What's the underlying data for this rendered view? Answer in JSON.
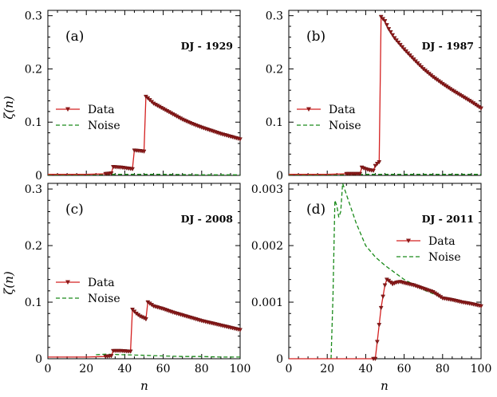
{
  "figure": {
    "ylabel": "ζ(n)",
    "xlabel": "n"
  },
  "chart_data": [
    {
      "type": "line",
      "panel": "(a)",
      "title": "DJ - 1929",
      "xlim": [
        0,
        100
      ],
      "ylim": [
        0,
        0.31
      ],
      "xticks": [
        0,
        20,
        40,
        60,
        80,
        100
      ],
      "yticks": [
        0,
        0.1,
        0.2,
        0.3
      ],
      "ytick_labels": [
        "0",
        "0.1",
        "0.2",
        "0.3"
      ],
      "show_xtick_labels": false,
      "legend": {
        "position": "middle-left",
        "data_label": "Data",
        "noise_label": "Noise"
      },
      "series": [
        {
          "name": "Data",
          "points": [
            [
              0,
              0.002
            ],
            [
              10,
              0.002
            ],
            [
              20,
              0.002
            ],
            [
              30,
              0.003
            ],
            [
              33,
              0.004
            ],
            [
              34,
              0.016
            ],
            [
              38,
              0.015
            ],
            [
              42,
              0.013
            ],
            [
              44,
              0.012
            ],
            [
              45,
              0.047
            ],
            [
              48,
              0.046
            ],
            [
              50,
              0.045
            ],
            [
              51,
              0.148
            ],
            [
              52,
              0.145
            ],
            [
              55,
              0.135
            ],
            [
              60,
              0.125
            ],
            [
              65,
              0.115
            ],
            [
              70,
              0.105
            ],
            [
              75,
              0.097
            ],
            [
              80,
              0.09
            ],
            [
              85,
              0.084
            ],
            [
              90,
              0.078
            ],
            [
              95,
              0.073
            ],
            [
              100,
              0.068
            ]
          ]
        },
        {
          "name": "Noise",
          "points": [
            [
              0,
              0.001
            ],
            [
              20,
              0.001
            ],
            [
              33,
              0.002
            ],
            [
              40,
              0.002
            ],
            [
              50,
              0.002
            ],
            [
              60,
              0.002
            ],
            [
              80,
              0.001
            ],
            [
              100,
              0.001
            ]
          ]
        }
      ]
    },
    {
      "type": "line",
      "panel": "(b)",
      "title": "DJ - 1987",
      "xlim": [
        0,
        100
      ],
      "ylim": [
        0,
        0.31
      ],
      "xticks": [
        0,
        20,
        40,
        60,
        80,
        100
      ],
      "yticks": [
        0,
        0.1,
        0.2,
        0.3
      ],
      "ytick_labels": [
        "0",
        "0.1",
        "0.2",
        "0.3"
      ],
      "show_xtick_labels": false,
      "legend": {
        "position": "middle-left",
        "data_label": "Data",
        "noise_label": "Noise"
      },
      "series": [
        {
          "name": "Data",
          "points": [
            [
              0,
              0.002
            ],
            [
              10,
              0.002
            ],
            [
              20,
              0.002
            ],
            [
              30,
              0.003
            ],
            [
              37,
              0.003
            ],
            [
              38,
              0.015
            ],
            [
              40,
              0.012
            ],
            [
              42,
              0.01
            ],
            [
              44,
              0.009
            ],
            [
              45,
              0.018
            ],
            [
              46,
              0.022
            ],
            [
              47,
              0.025
            ],
            [
              48,
              0.298
            ],
            [
              50,
              0.29
            ],
            [
              52,
              0.275
            ],
            [
              55,
              0.258
            ],
            [
              60,
              0.237
            ],
            [
              65,
              0.218
            ],
            [
              70,
              0.2
            ],
            [
              75,
              0.185
            ],
            [
              80,
              0.172
            ],
            [
              85,
              0.16
            ],
            [
              90,
              0.149
            ],
            [
              95,
              0.138
            ],
            [
              100,
              0.126
            ]
          ]
        },
        {
          "name": "Noise",
          "points": [
            [
              0,
              0.001
            ],
            [
              20,
              0.001
            ],
            [
              40,
              0.002
            ],
            [
              60,
              0.002
            ],
            [
              80,
              0.002
            ],
            [
              100,
              0.002
            ]
          ]
        }
      ]
    },
    {
      "type": "line",
      "panel": "(c)",
      "title": "DJ - 2008",
      "xlim": [
        0,
        100
      ],
      "ylim": [
        0,
        0.31
      ],
      "xticks": [
        0,
        20,
        40,
        60,
        80,
        100
      ],
      "xtick_labels": [
        "0",
        "20",
        "40",
        "60",
        "80",
        "100"
      ],
      "yticks": [
        0,
        0.1,
        0.2,
        0.3
      ],
      "ytick_labels": [
        "0",
        "0.1",
        "0.2",
        "0.3"
      ],
      "show_xtick_labels": true,
      "legend": {
        "position": "middle-left",
        "data_label": "Data",
        "noise_label": "Noise"
      },
      "series": [
        {
          "name": "Data",
          "points": [
            [
              0,
              0.003
            ],
            [
              10,
              0.003
            ],
            [
              20,
              0.003
            ],
            [
              30,
              0.004
            ],
            [
              33,
              0.005
            ],
            [
              34,
              0.014
            ],
            [
              38,
              0.014
            ],
            [
              42,
              0.013
            ],
            [
              43,
              0.013
            ],
            [
              44,
              0.087
            ],
            [
              46,
              0.08
            ],
            [
              48,
              0.075
            ],
            [
              50,
              0.072
            ],
            [
              51,
              0.07
            ],
            [
              52,
              0.1
            ],
            [
              55,
              0.093
            ],
            [
              60,
              0.088
            ],
            [
              65,
              0.082
            ],
            [
              70,
              0.077
            ],
            [
              75,
              0.072
            ],
            [
              80,
              0.067
            ],
            [
              85,
              0.063
            ],
            [
              90,
              0.059
            ],
            [
              95,
              0.055
            ],
            [
              100,
              0.051
            ]
          ]
        },
        {
          "name": "Noise",
          "points": [
            [
              25,
              0.007
            ],
            [
              30,
              0.008
            ],
            [
              40,
              0.007
            ],
            [
              50,
              0.006
            ],
            [
              60,
              0.005
            ],
            [
              70,
              0.004
            ],
            [
              80,
              0.004
            ],
            [
              90,
              0.003
            ],
            [
              100,
              0.003
            ]
          ]
        }
      ]
    },
    {
      "type": "line",
      "panel": "(d)",
      "title": "DJ - 2011",
      "xlim": [
        0,
        100
      ],
      "ylim": [
        0,
        0.0031
      ],
      "xticks": [
        0,
        20,
        40,
        60,
        80,
        100
      ],
      "xtick_labels": [
        "0",
        "20",
        "40",
        "60",
        "80",
        "100"
      ],
      "yticks": [
        0,
        0.001,
        0.002,
        0.003
      ],
      "ytick_labels": [
        "0",
        "0.001",
        "0.002",
        "0.003"
      ],
      "show_xtick_labels": true,
      "legend": {
        "position": "upper-right",
        "data_label": "Data",
        "noise_label": "Noise"
      },
      "series": [
        {
          "name": "Data",
          "points": [
            [
              0,
              0
            ],
            [
              20,
              0
            ],
            [
              40,
              0
            ],
            [
              45,
              0
            ],
            [
              46,
              0.0003
            ],
            [
              47,
              0.0006
            ],
            [
              48,
              0.0009
            ],
            [
              49,
              0.0011
            ],
            [
              50,
              0.0013
            ],
            [
              51,
              0.0014
            ],
            [
              52,
              0.00138
            ],
            [
              54,
              0.00132
            ],
            [
              56,
              0.00135
            ],
            [
              58,
              0.00136
            ],
            [
              60,
              0.00134
            ],
            [
              65,
              0.0013
            ],
            [
              70,
              0.00124
            ],
            [
              75,
              0.00118
            ],
            [
              80,
              0.00107
            ],
            [
              85,
              0.00104
            ],
            [
              90,
              0.001
            ],
            [
              95,
              0.00097
            ],
            [
              100,
              0.00093
            ]
          ]
        },
        {
          "name": "Noise",
          "points": [
            [
              22,
              0
            ],
            [
              23,
              0.0011
            ],
            [
              24,
              0.0028
            ],
            [
              25,
              0.0027
            ],
            [
              26,
              0.0025
            ],
            [
              27,
              0.0026
            ],
            [
              28,
              0.0031
            ],
            [
              30,
              0.0029
            ],
            [
              35,
              0.0024
            ],
            [
              40,
              0.002
            ],
            [
              45,
              0.0018
            ],
            [
              50,
              0.00165
            ],
            [
              60,
              0.0014
            ],
            [
              70,
              0.00122
            ],
            [
              80,
              0.00108
            ],
            [
              90,
              0.001
            ],
            [
              100,
              0.00094
            ]
          ]
        }
      ]
    }
  ]
}
